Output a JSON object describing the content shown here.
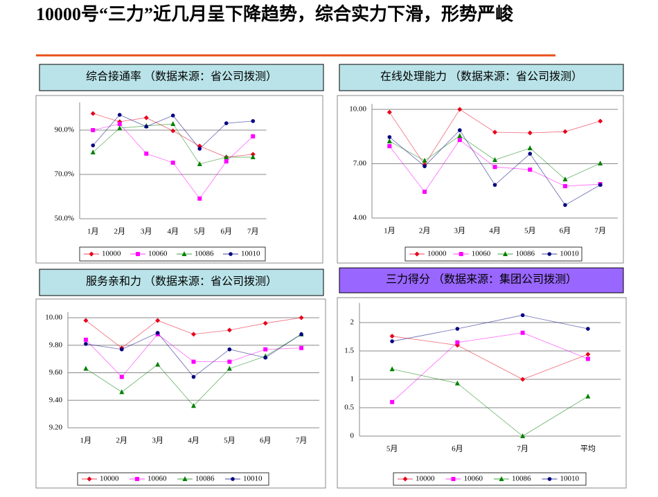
{
  "title": "10000号“三力”近几月呈下降趋势，综合实力下滑，形势严峻",
  "chart_data": [
    {
      "type": "line",
      "title": "综合接通率 （数据来源：省公司拨测）",
      "header_color": "#b9e3e8",
      "categories": [
        "1月",
        "2月",
        "3月",
        "4月",
        "5月",
        "6月",
        "7月"
      ],
      "ylim": [
        50,
        100
      ],
      "yticks": [
        {
          "value": 50,
          "label": "50.0%"
        },
        {
          "value": 70,
          "label": "70.0%"
        },
        {
          "value": 90,
          "label": "90.0%"
        }
      ],
      "grid": true,
      "series": [
        {
          "name": "10000",
          "color": "#e8001c",
          "marker": "diamond",
          "values": [
            97.5,
            93.8,
            95.6,
            89.7,
            82.8,
            77.8,
            79.1
          ]
        },
        {
          "name": "10060",
          "color": "#ff00ff",
          "marker": "square",
          "values": [
            90,
            92.8,
            79.4,
            75.3,
            59.1,
            75.9,
            87.2
          ]
        },
        {
          "name": "10086",
          "color": "#008000",
          "marker": "triangle",
          "values": [
            80,
            90.9,
            91.9,
            92.8,
            74.7,
            77.8,
            77.8
          ]
        },
        {
          "name": "10010",
          "color": "#000080",
          "marker": "circle",
          "values": [
            83.1,
            96.9,
            91.6,
            96.6,
            81.6,
            93.1,
            94.1
          ]
        }
      ]
    },
    {
      "type": "line",
      "title": "在线处理能力 （数据来源：省公司拨测）",
      "header_color": "#b9e3e8",
      "categories": [
        "1月",
        "2月",
        "3月",
        "4月",
        "5月",
        "6月",
        "7月"
      ],
      "ylim": [
        4,
        10
      ],
      "yticks": [
        {
          "value": 4,
          "label": "4.00"
        },
        {
          "value": 7,
          "label": "7.00"
        },
        {
          "value": 10,
          "label": "10.00"
        }
      ],
      "grid": true,
      "series": [
        {
          "name": "10000",
          "color": "#e8001c",
          "marker": "diamond",
          "values": [
            9.84,
            6.94,
            10,
            8.74,
            8.7,
            8.77,
            9.35
          ]
        },
        {
          "name": "10060",
          "color": "#ff00ff",
          "marker": "square",
          "values": [
            7.97,
            5.45,
            8.31,
            6.82,
            6.67,
            5.76,
            5.87
          ]
        },
        {
          "name": "10086",
          "color": "#008000",
          "marker": "triangle",
          "values": [
            8.24,
            7.17,
            8.54,
            7.21,
            7.86,
            6.14,
            7.02
          ]
        },
        {
          "name": "10010",
          "color": "#000080",
          "marker": "circle",
          "values": [
            8.47,
            6.86,
            8.85,
            5.83,
            7.55,
            4.72,
            5.83
          ]
        }
      ]
    },
    {
      "type": "line",
      "title": "服务亲和力 （数据来源：省公司拨测）",
      "header_color": "#b9e3e8",
      "categories": [
        "1月",
        "2月",
        "3月",
        "4月",
        "5月",
        "6月",
        "7月"
      ],
      "ylim": [
        9.2,
        10
      ],
      "yticks": [
        {
          "value": 9.2,
          "label": "9.20"
        },
        {
          "value": 9.4,
          "label": "9.40"
        },
        {
          "value": 9.6,
          "label": "9.60"
        },
        {
          "value": 9.8,
          "label": "9.80"
        },
        {
          "value": 10,
          "label": "10.00"
        }
      ],
      "grid": true,
      "series": [
        {
          "name": "10000",
          "color": "#e8001c",
          "marker": "diamond",
          "values": [
            9.98,
            9.78,
            9.98,
            9.88,
            9.91,
            9.96,
            10
          ]
        },
        {
          "name": "10060",
          "color": "#ff00ff",
          "marker": "square",
          "values": [
            9.84,
            9.57,
            9.88,
            9.68,
            9.68,
            9.77,
            9.78
          ]
        },
        {
          "name": "10086",
          "color": "#008000",
          "marker": "triangle",
          "values": [
            9.63,
            9.46,
            9.66,
            9.36,
            9.63,
            9.72,
            9.88
          ]
        },
        {
          "name": "10010",
          "color": "#000080",
          "marker": "circle",
          "values": [
            9.81,
            9.77,
            9.89,
            9.57,
            9.77,
            9.71,
            9.88
          ]
        }
      ]
    },
    {
      "type": "line",
      "title": "三力得分 （数据来源：集团公司拨测）",
      "header_color": "#9966ff",
      "categories": [
        "5月",
        "6月",
        "7月",
        "平均"
      ],
      "ylim": [
        0,
        2.25
      ],
      "yticks": [
        0,
        0.5,
        1,
        1.5,
        2
      ],
      "grid": true,
      "series": [
        {
          "name": "10000",
          "color": "#e8001c",
          "marker": "diamond",
          "values": [
            1.76,
            1.6,
            1.0,
            1.44
          ]
        },
        {
          "name": "10060",
          "color": "#ff00ff",
          "marker": "square",
          "values": [
            0.6,
            1.65,
            1.82,
            1.36
          ]
        },
        {
          "name": "10086",
          "color": "#008000",
          "marker": "triangle",
          "values": [
            1.18,
            0.93,
            0,
            0.7
          ]
        },
        {
          "name": "10010",
          "color": "#000080",
          "marker": "circle",
          "values": [
            1.67,
            1.89,
            2.13,
            1.89
          ]
        }
      ]
    }
  ]
}
